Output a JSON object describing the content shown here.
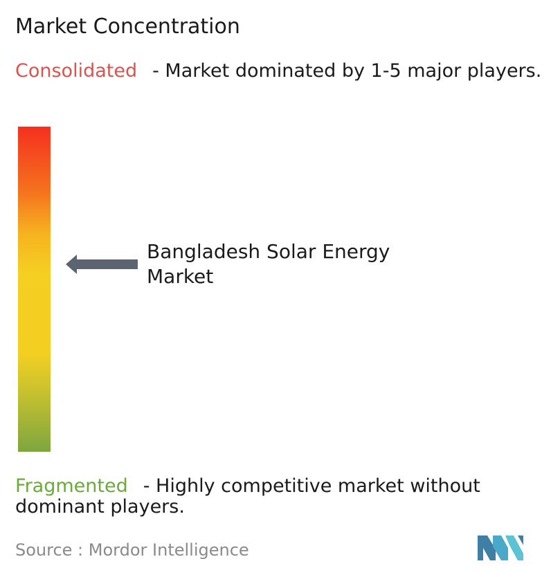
{
  "title": "Market Concentration",
  "consolidated": {
    "keyword": "Consolidated",
    "description": "- Market dominated by 1-5 major players."
  },
  "fragmented": {
    "keyword": "Fragmented",
    "description": "- Highly competitive market without dominant players."
  },
  "market_label": "Bangladesh Solar Energy Market",
  "source": "Source :  Mordor Intelligence",
  "colors": {
    "consolidated": "#d9534f",
    "fragmented": "#6aaa3a",
    "arrow": "#5b6470",
    "logo": "#4aa8c8"
  },
  "icons": [
    "left-arrow-icon",
    "mordor-intelligence-logo-icon"
  ]
}
